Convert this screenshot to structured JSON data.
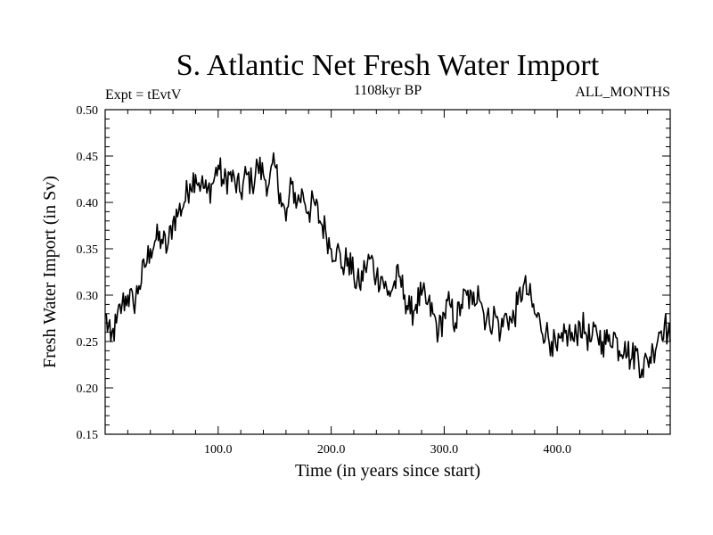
{
  "chart_data": {
    "type": "line",
    "title": "S. Atlantic Net Fresh Water Import",
    "subtitle_left": "Expt = tEvtV",
    "subtitle_center": "1108kyr BP",
    "subtitle_right": "ALL_MONTHS",
    "xlabel": "Time (in years since start)",
    "ylabel": "Fresh Water Import (in Sv)",
    "xlim": [
      0,
      500
    ],
    "ylim": [
      0.15,
      0.5
    ],
    "xticks": [
      100,
      200,
      300,
      400
    ],
    "xtick_labels": [
      "100.0",
      "200.0",
      "300.0",
      "400.0"
    ],
    "yticks": [
      0.15,
      0.2,
      0.25,
      0.3,
      0.35,
      0.4,
      0.45,
      0.5
    ],
    "ytick_labels": [
      "0.15",
      "0.20",
      "0.25",
      "0.30",
      "0.35",
      "0.40",
      "0.45",
      "0.50"
    ],
    "grid": false,
    "series": [
      {
        "name": "Fresh Water Import",
        "color": "#000000",
        "x": [
          0,
          5,
          10,
          15,
          20,
          25,
          30,
          35,
          40,
          45,
          50,
          55,
          60,
          65,
          70,
          75,
          80,
          85,
          90,
          95,
          100,
          105,
          110,
          115,
          120,
          125,
          130,
          135,
          140,
          145,
          150,
          155,
          160,
          165,
          170,
          175,
          180,
          185,
          190,
          195,
          200,
          205,
          210,
          215,
          220,
          225,
          230,
          235,
          240,
          245,
          250,
          255,
          260,
          265,
          270,
          275,
          280,
          285,
          290,
          295,
          300,
          305,
          310,
          315,
          320,
          325,
          330,
          335,
          340,
          345,
          350,
          355,
          360,
          365,
          370,
          375,
          380,
          385,
          390,
          395,
          400,
          405,
          410,
          415,
          420,
          425,
          430,
          435,
          440,
          445,
          450,
          455,
          460,
          465,
          470,
          475,
          480,
          485,
          490,
          495,
          500
        ],
        "values": [
          0.28,
          0.25,
          0.27,
          0.29,
          0.3,
          0.29,
          0.31,
          0.33,
          0.35,
          0.36,
          0.36,
          0.35,
          0.38,
          0.39,
          0.4,
          0.42,
          0.43,
          0.42,
          0.41,
          0.42,
          0.44,
          0.42,
          0.43,
          0.42,
          0.41,
          0.43,
          0.42,
          0.44,
          0.43,
          0.42,
          0.44,
          0.41,
          0.38,
          0.42,
          0.4,
          0.41,
          0.39,
          0.4,
          0.38,
          0.37,
          0.35,
          0.35,
          0.33,
          0.34,
          0.32,
          0.31,
          0.33,
          0.34,
          0.32,
          0.32,
          0.3,
          0.31,
          0.32,
          0.3,
          0.28,
          0.29,
          0.3,
          0.29,
          0.28,
          0.26,
          0.28,
          0.29,
          0.27,
          0.29,
          0.3,
          0.29,
          0.31,
          0.28,
          0.27,
          0.28,
          0.26,
          0.28,
          0.27,
          0.29,
          0.31,
          0.3,
          0.28,
          0.27,
          0.26,
          0.25,
          0.24,
          0.25,
          0.26,
          0.25,
          0.27,
          0.26,
          0.25,
          0.26,
          0.25,
          0.25,
          0.26,
          0.24,
          0.25,
          0.23,
          0.24,
          0.22,
          0.23,
          0.24,
          0.26,
          0.27,
          0.25
        ]
      }
    ]
  }
}
